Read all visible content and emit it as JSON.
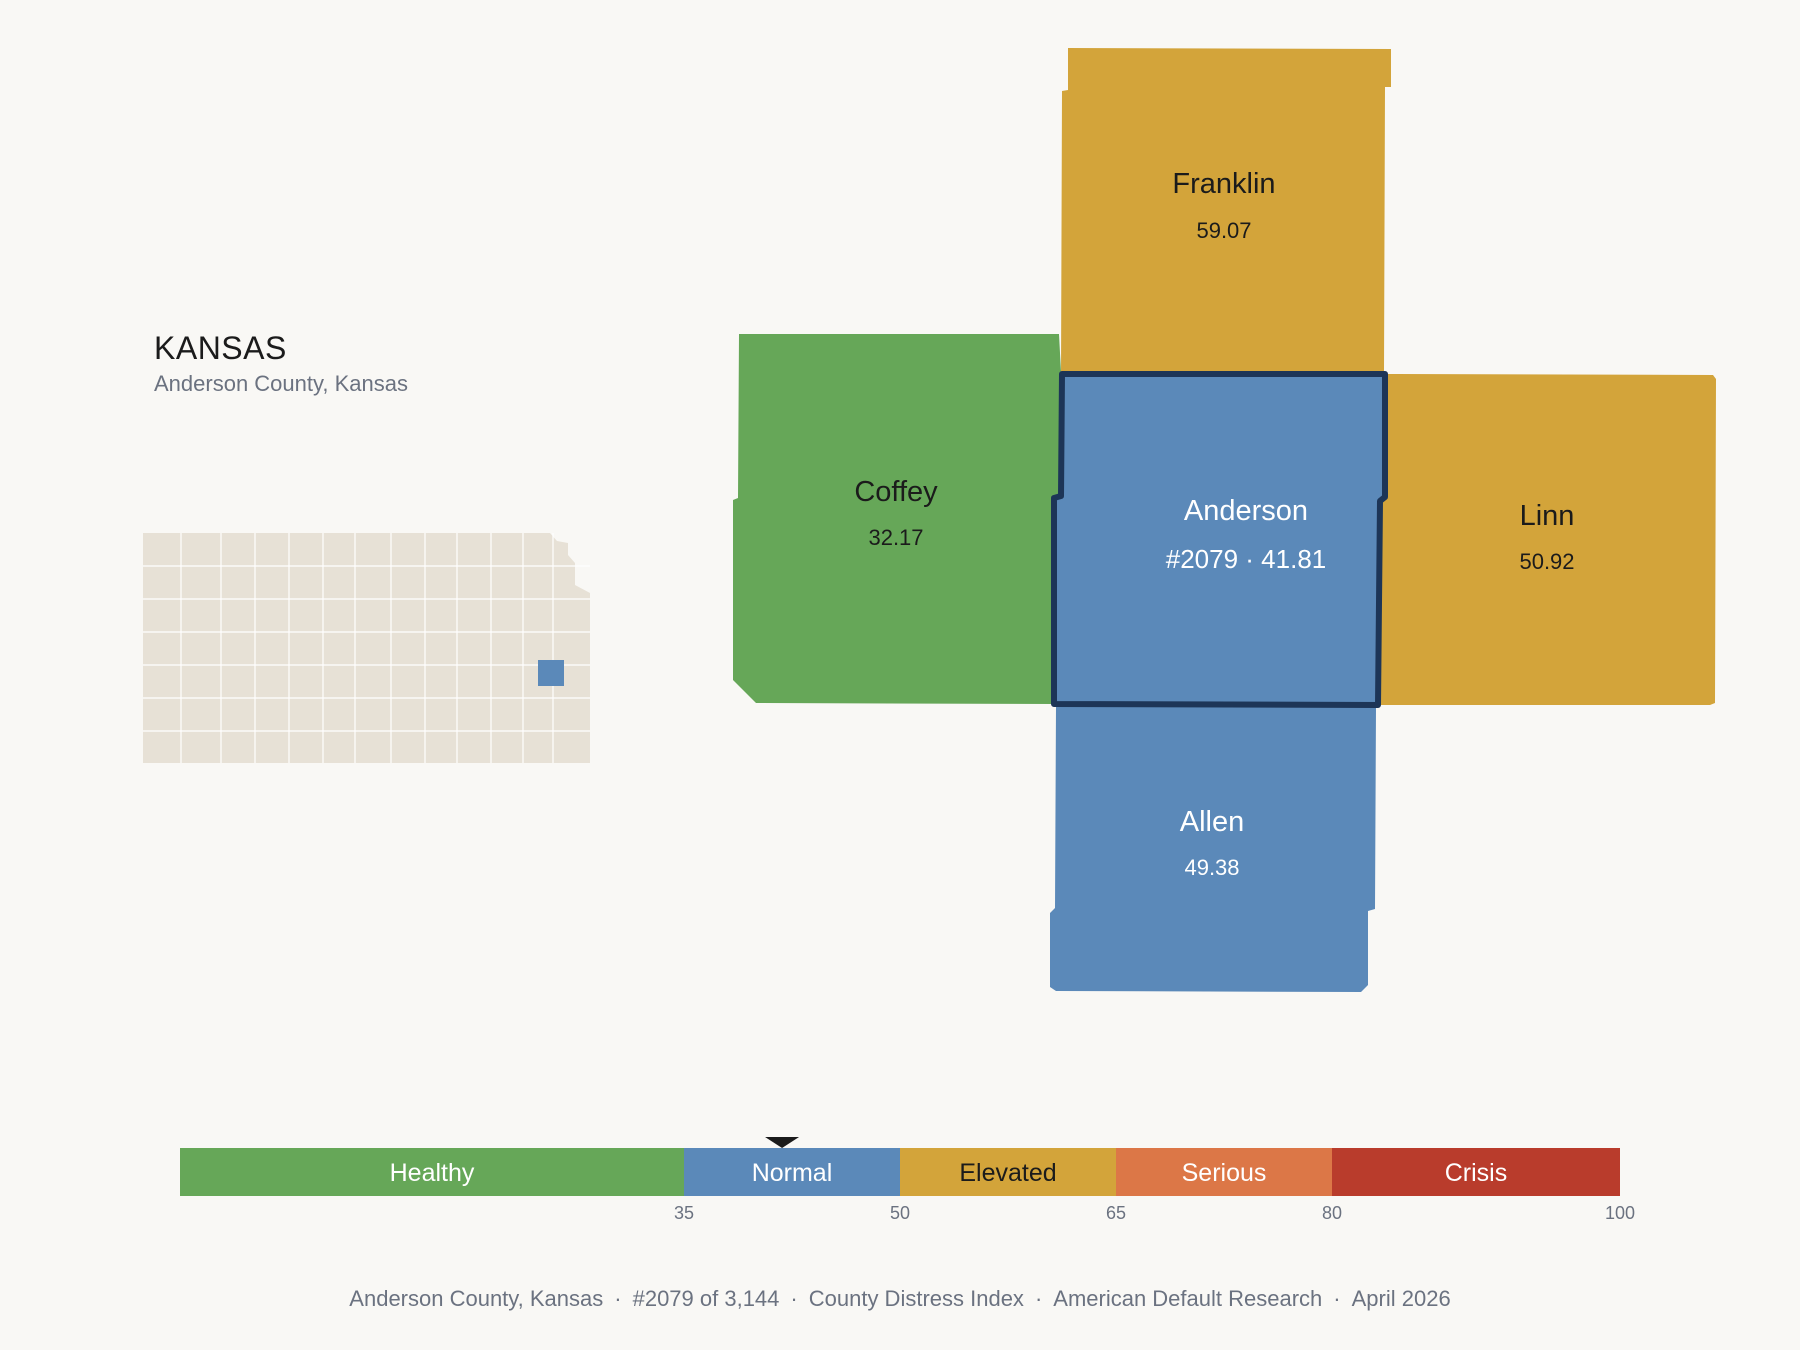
{
  "header": {
    "state": "KANSAS",
    "subtitle": "Anderson County, Kansas"
  },
  "colors": {
    "background": "#f9f8f5",
    "healthy": "#66a758",
    "normal": "#5b89b9",
    "elevated": "#d3a43a",
    "serious": "#dc7747",
    "crisis": "#b93c2c",
    "highlight_border": "#1d3557",
    "state_fill": "#e7e1d6"
  },
  "map": {
    "selected": {
      "name": "Anderson",
      "rank_value": "#2079 · 41.81",
      "category": "normal"
    },
    "neighbors": [
      {
        "name": "Franklin",
        "value": "59.07",
        "category": "elevated"
      },
      {
        "name": "Coffey",
        "value": "32.17",
        "category": "healthy"
      },
      {
        "name": "Linn",
        "value": "50.92",
        "category": "elevated"
      },
      {
        "name": "Allen",
        "value": "49.38",
        "category": "normal"
      }
    ]
  },
  "scale": {
    "min": 0,
    "max": 100,
    "marker_value": 41.81,
    "bands": [
      {
        "label": "Healthy",
        "from": 0,
        "to": 35,
        "color": "#66a758",
        "text_color": "#ffffff"
      },
      {
        "label": "Normal",
        "from": 35,
        "to": 50,
        "color": "#5b89b9",
        "text_color": "#ffffff"
      },
      {
        "label": "Elevated",
        "from": 50,
        "to": 65,
        "color": "#d3a43a",
        "text_color": "#1b1b1b"
      },
      {
        "label": "Serious",
        "from": 65,
        "to": 80,
        "color": "#dc7747",
        "text_color": "#ffffff"
      },
      {
        "label": "Crisis",
        "from": 80,
        "to": 100,
        "color": "#b93c2c",
        "text_color": "#ffffff"
      }
    ],
    "ticks": [
      "35",
      "50",
      "65",
      "80",
      "100"
    ]
  },
  "footer": [
    "Anderson County, Kansas",
    "#2079 of 3,144",
    "County Distress Index",
    "American Default Research",
    "April 2026"
  ]
}
